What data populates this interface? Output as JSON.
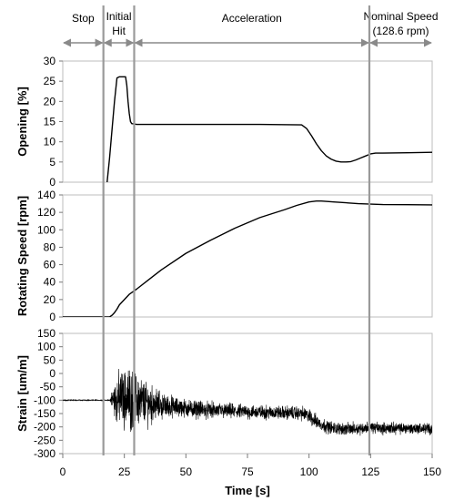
{
  "chart_data": {
    "type": "line",
    "xlabel": "Time [s]",
    "xlim": [
      0,
      150
    ],
    "xticks": [
      0,
      25,
      50,
      75,
      100,
      125,
      150
    ],
    "phase_boundaries": [
      16.5,
      29,
      124.5
    ],
    "phases": [
      {
        "name": "stop",
        "label": "Stop",
        "label2": "",
        "start": 0,
        "end": 16.5
      },
      {
        "name": "initial-hit",
        "label": "Initial",
        "label2": "Hit",
        "start": 16.5,
        "end": 29
      },
      {
        "name": "acceleration",
        "label": "Acceleration",
        "label2": "",
        "start": 29,
        "end": 124.5
      },
      {
        "name": "nominal-speed",
        "label": "Nominal Speed",
        "label2": "(128.6 rpm)",
        "start": 124.5,
        "end": 150
      }
    ],
    "panels": [
      {
        "name": "opening",
        "ylabel": "Opening [%]",
        "ylim": [
          0,
          30
        ],
        "yticks": [
          0,
          5,
          10,
          15,
          20,
          25,
          30
        ],
        "x": [
          18,
          19,
          20,
          21,
          22,
          23,
          24.5,
          25.5,
          26,
          26.5,
          27,
          27.5,
          28,
          30,
          40,
          60,
          80,
          97,
          99,
          101,
          103,
          105,
          107,
          109,
          111,
          113,
          115,
          117,
          119,
          121,
          123,
          125,
          127,
          130,
          140,
          150
        ],
        "y": [
          0,
          6,
          13,
          20,
          25.8,
          26.1,
          26.1,
          26.1,
          24,
          20,
          17,
          15,
          14.5,
          14.3,
          14.3,
          14.3,
          14.3,
          14.2,
          13.3,
          11.5,
          9.5,
          7.8,
          6.5,
          5.7,
          5.2,
          5.0,
          5.0,
          5.1,
          5.5,
          6.0,
          6.5,
          7.0,
          7.2,
          7.2,
          7.3,
          7.4
        ]
      },
      {
        "name": "rotating-speed",
        "ylabel": "Rotating Speed [rpm]",
        "ylim": [
          0,
          140
        ],
        "yticks": [
          0,
          20,
          40,
          60,
          80,
          100,
          120,
          140
        ],
        "x": [
          0,
          19,
          20,
          21,
          22,
          23,
          24,
          25,
          26,
          27,
          28,
          30,
          35,
          40,
          50,
          60,
          70,
          80,
          90,
          95,
          100,
          103,
          105,
          110,
          115,
          120,
          125,
          130,
          140,
          150
        ],
        "y": [
          0,
          0,
          2,
          5,
          9,
          14,
          17,
          20,
          23,
          26,
          28,
          32,
          43,
          54,
          73,
          88,
          102,
          114,
          123,
          128,
          132,
          133,
          133,
          132,
          131,
          130,
          129.5,
          129,
          128.8,
          128.6
        ]
      },
      {
        "name": "strain",
        "ylabel": "Strain [um/m]",
        "ylim": [
          -300,
          150
        ],
        "yticks": [
          -300,
          -250,
          -200,
          -150,
          -100,
          -50,
          0,
          50,
          100,
          150
        ],
        "x": [
          0,
          19,
          20,
          22,
          25,
          30,
          35,
          40,
          50,
          60,
          70,
          80,
          90,
          95,
          98,
          100,
          103,
          106,
          110,
          115,
          120,
          125,
          130,
          140,
          150
        ],
        "y": [
          -100,
          -100,
          -98,
          -95,
          -90,
          -100,
          -112,
          -120,
          -130,
          -138,
          -142,
          -145,
          -147,
          -148,
          -152,
          -160,
          -180,
          -195,
          -205,
          -208,
          -205,
          -202,
          -205,
          -205,
          -207
        ],
        "band": [
          0,
          0,
          50,
          120,
          150,
          140,
          100,
          60,
          45,
          40,
          36,
          34,
          33,
          33,
          34,
          36,
          36,
          34,
          30,
          30,
          30,
          28,
          28,
          28,
          28
        ]
      }
    ]
  }
}
